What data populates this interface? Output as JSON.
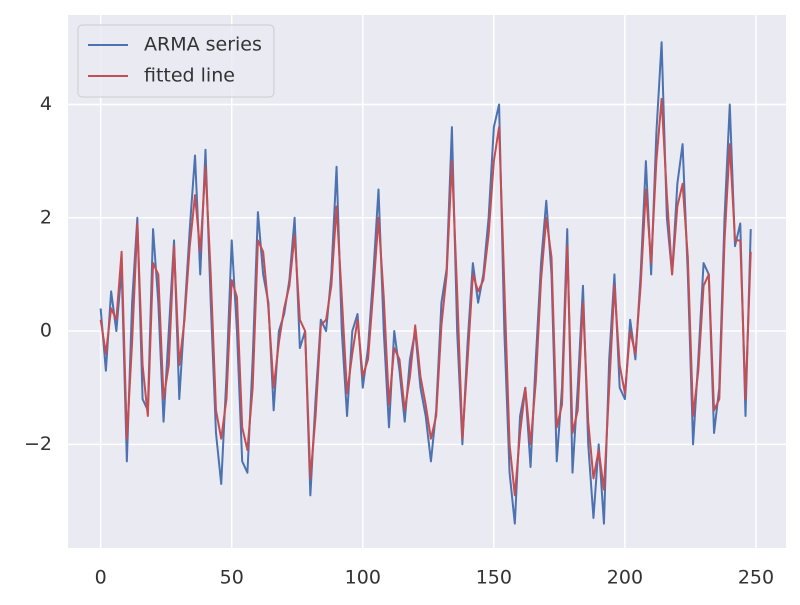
{
  "chart_data": {
    "type": "line",
    "x": [
      0,
      2,
      4,
      6,
      8,
      10,
      12,
      14,
      16,
      18,
      20,
      22,
      24,
      26,
      28,
      30,
      32,
      34,
      36,
      38,
      40,
      42,
      44,
      46,
      48,
      50,
      52,
      54,
      56,
      58,
      60,
      62,
      64,
      66,
      68,
      70,
      72,
      74,
      76,
      78,
      80,
      82,
      84,
      86,
      88,
      90,
      92,
      94,
      96,
      98,
      100,
      102,
      104,
      106,
      108,
      110,
      112,
      114,
      116,
      118,
      120,
      122,
      124,
      126,
      128,
      130,
      132,
      134,
      136,
      138,
      140,
      142,
      144,
      146,
      148,
      150,
      152,
      154,
      156,
      158,
      160,
      162,
      164,
      166,
      168,
      170,
      172,
      174,
      176,
      178,
      180,
      182,
      184,
      186,
      188,
      190,
      192,
      194,
      196,
      198,
      200,
      202,
      204,
      206,
      208,
      210,
      212,
      214,
      216,
      218,
      220,
      222,
      224,
      226,
      228,
      230,
      232,
      234,
      236,
      238,
      240,
      242,
      244,
      246,
      248
    ],
    "series": [
      {
        "name": "ARMA series",
        "color": "#4c72b0",
        "values": [
          0.4,
          -0.7,
          0.7,
          0.0,
          1.1,
          -2.3,
          0.5,
          2.0,
          -1.2,
          -1.4,
          1.8,
          0.5,
          -1.6,
          0.0,
          1.6,
          -1.2,
          0.3,
          1.8,
          3.1,
          1.0,
          3.2,
          0.5,
          -1.8,
          -2.7,
          -0.8,
          1.6,
          0.0,
          -2.3,
          -2.5,
          -0.5,
          2.1,
          1.0,
          0.5,
          -1.4,
          0.0,
          0.3,
          0.9,
          2.0,
          -0.3,
          0.0,
          -2.9,
          -1.2,
          0.2,
          0.0,
          1.0,
          2.9,
          0.0,
          -1.5,
          0.0,
          0.3,
          -1.0,
          -0.3,
          1.0,
          2.5,
          0.0,
          -1.7,
          0.0,
          -0.7,
          -1.6,
          -0.5,
          0.0,
          -1.0,
          -1.5,
          -2.3,
          -1.4,
          0.5,
          1.1,
          3.6,
          0.0,
          -2.0,
          -0.2,
          1.2,
          0.5,
          1.0,
          2.0,
          3.6,
          4.0,
          0.0,
          -2.5,
          -3.4,
          -1.5,
          -1.0,
          -2.4,
          -0.5,
          1.2,
          2.3,
          1.0,
          -2.3,
          -1.0,
          1.8,
          -2.5,
          -1.0,
          0.8,
          -2.0,
          -3.3,
          -2.0,
          -3.4,
          -0.5,
          1.0,
          -1.0,
          -1.2,
          0.2,
          -0.5,
          1.0,
          3.0,
          1.0,
          3.5,
          5.1,
          2.0,
          1.0,
          2.6,
          3.3,
          1.0,
          -2.0,
          -0.5,
          1.2,
          1.0,
          -1.8,
          -1.0,
          2.0,
          4.0,
          1.5,
          1.9,
          -1.5,
          1.8
        ]
      },
      {
        "name": "fitted line",
        "color": "#c44e52",
        "values": [
          0.2,
          -0.4,
          0.4,
          0.2,
          1.4,
          -1.9,
          -0.2,
          1.9,
          -0.6,
          -1.5,
          1.2,
          1.0,
          -1.2,
          -0.6,
          1.5,
          -0.6,
          0.2,
          1.5,
          2.4,
          1.4,
          2.9,
          1.0,
          -1.4,
          -1.9,
          -1.2,
          0.9,
          0.6,
          -1.7,
          -2.1,
          -1.0,
          1.6,
          1.4,
          0.4,
          -1.0,
          -0.2,
          0.4,
          0.8,
          1.7,
          0.2,
          0.0,
          -2.6,
          -1.5,
          0.1,
          0.2,
          0.8,
          2.2,
          0.6,
          -1.1,
          -0.4,
          0.2,
          -0.8,
          -0.5,
          0.7,
          2.0,
          0.6,
          -1.3,
          -0.3,
          -0.5,
          -1.4,
          -0.8,
          0.1,
          -0.8,
          -1.3,
          -1.9,
          -1.5,
          0.1,
          1.0,
          3.0,
          0.7,
          -1.9,
          -0.5,
          1.0,
          0.7,
          0.9,
          1.7,
          3.0,
          3.6,
          0.8,
          -2.0,
          -2.9,
          -1.8,
          -1.0,
          -2.0,
          -0.9,
          0.9,
          2.0,
          1.3,
          -1.7,
          -1.3,
          1.5,
          -1.8,
          -1.4,
          0.5,
          -1.6,
          -2.6,
          -2.1,
          -2.8,
          -1.0,
          0.8,
          -0.6,
          -1.1,
          0.0,
          -0.4,
          0.8,
          2.5,
          1.2,
          3.0,
          4.1,
          2.4,
          1.0,
          2.2,
          2.6,
          1.3,
          -1.5,
          -0.7,
          0.8,
          1.0,
          -1.4,
          -1.2,
          1.6,
          3.3,
          1.6,
          1.6,
          -1.2,
          1.4
        ]
      }
    ],
    "xlim": [
      -12.45,
      261.45
    ],
    "ylim": [
      -3.83,
      5.58
    ],
    "xticks": [
      0,
      50,
      100,
      150,
      200,
      250
    ],
    "yticks": [
      {
        "value": -2,
        "label": "−2"
      },
      0,
      2,
      4
    ],
    "grid": true,
    "legend": "upper left"
  }
}
